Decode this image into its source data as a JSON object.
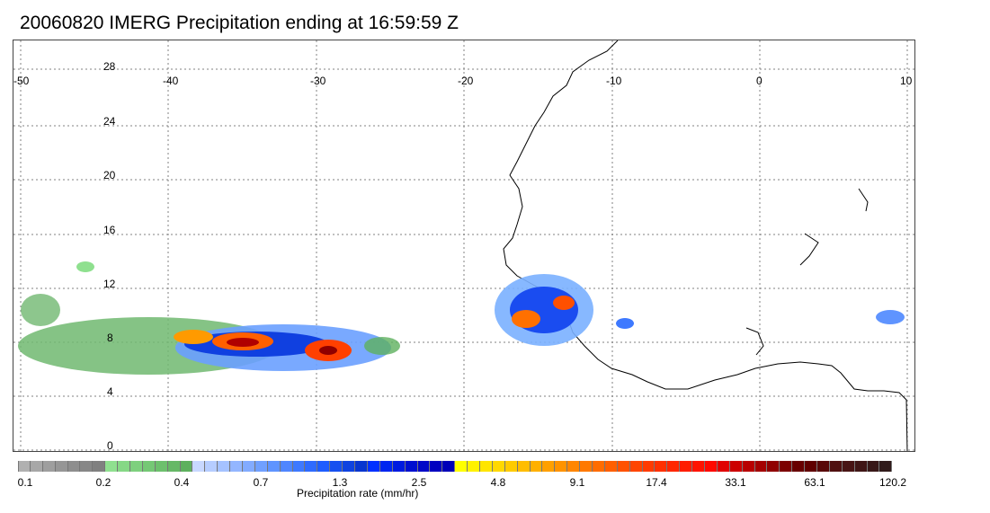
{
  "title": "20060820 IMERG Precipitation ending at 16:59:59 Z",
  "map": {
    "lon_ticks": [
      "-50",
      "-40",
      "-30",
      "-20",
      "-10",
      "0",
      "10"
    ],
    "lat_ticks": [
      "28",
      "24",
      "20",
      "16",
      "12",
      "8",
      "4",
      "0"
    ],
    "background": "#ffffff",
    "coastline_color": "#000000",
    "grid": "dotted"
  },
  "colorbar": {
    "label": "Precipitation rate (mm/hr)",
    "tick_labels": [
      "0.1",
      "0.2",
      "0.4",
      "0.7",
      "1.3",
      "2.5",
      "4.8",
      "9.1",
      "17.4",
      "33.1",
      "63.1",
      "120.2"
    ],
    "colors": [
      "#b0b0b0",
      "#a7a7a7",
      "#9e9e9e",
      "#969696",
      "#8e8e8e",
      "#878787",
      "#808080",
      "#8fe08f",
      "#86d886",
      "#7ed07e",
      "#75c875",
      "#6dc06d",
      "#66b866",
      "#5eb05e",
      "#c8d8ff",
      "#b6cdff",
      "#a5c2ff",
      "#93b6ff",
      "#82abff",
      "#70a0ff",
      "#5f94ff",
      "#4f86ff",
      "#3e79ff",
      "#2e6bff",
      "#1e5dff",
      "#1650f0",
      "#0f43e0",
      "#0836d0",
      "#0030ff",
      "#0025f0",
      "#001ae0",
      "#0010d0",
      "#0008c8",
      "#0000c0",
      "#0000b8",
      "#ffff00",
      "#fff200",
      "#ffe500",
      "#ffd800",
      "#ffcb00",
      "#ffbd00",
      "#ffb000",
      "#ffa000",
      "#ff9300",
      "#ff8600",
      "#ff7900",
      "#ff6c00",
      "#ff5f00",
      "#ff5200",
      "#ff4500",
      "#ff3b00",
      "#ff3100",
      "#ff2700",
      "#ff1d00",
      "#ff1300",
      "#ff0900",
      "#e00000",
      "#cc0000",
      "#b80000",
      "#a40000",
      "#900000",
      "#7c0000",
      "#680000",
      "#600000",
      "#580808",
      "#501010",
      "#481414",
      "#401616",
      "#381818",
      "#301a1a"
    ]
  }
}
